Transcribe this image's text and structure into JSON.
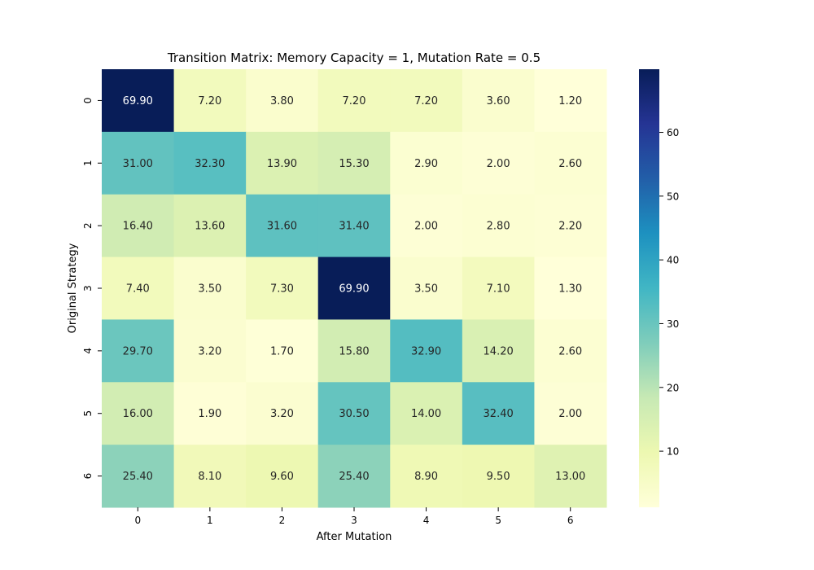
{
  "chart_data": {
    "type": "heatmap",
    "title": "Transition Matrix: Memory Capacity = 1, Mutation Rate = 0.5",
    "xlabel": "After Mutation",
    "ylabel": "Original Strategy",
    "x_categories": [
      "0",
      "1",
      "2",
      "3",
      "4",
      "5",
      "6"
    ],
    "y_categories": [
      "0",
      "1",
      "2",
      "3",
      "4",
      "5",
      "6"
    ],
    "values": [
      [
        69.9,
        7.2,
        3.8,
        7.2,
        7.2,
        3.6,
        1.2
      ],
      [
        31.0,
        32.3,
        13.9,
        15.3,
        2.9,
        2.0,
        2.6
      ],
      [
        16.4,
        13.6,
        31.6,
        31.4,
        2.0,
        2.8,
        2.2
      ],
      [
        7.4,
        3.5,
        7.3,
        69.9,
        3.5,
        7.1,
        1.3
      ],
      [
        29.7,
        3.2,
        1.7,
        15.8,
        32.9,
        14.2,
        2.6
      ],
      [
        16.0,
        1.9,
        3.2,
        30.5,
        14.0,
        32.4,
        2.0
      ],
      [
        25.4,
        8.1,
        9.6,
        25.4,
        8.9,
        9.5,
        13.0
      ]
    ],
    "value_format": "2 decimals",
    "colormap": "YlGnBu",
    "colorbar": {
      "range": [
        1.2,
        69.9
      ],
      "ticks": [
        10,
        20,
        30,
        40,
        50,
        60
      ],
      "placement": "right"
    },
    "grid": false
  }
}
